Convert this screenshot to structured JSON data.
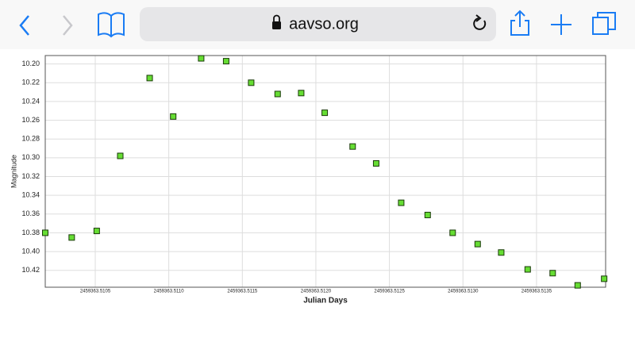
{
  "browser": {
    "url": "aavso.org"
  },
  "chart_data": {
    "type": "scatter",
    "x_label": "Julian Days",
    "y_label": "Magnitude",
    "x": [
      2459363.51016,
      2459363.51034,
      2459363.51051,
      2459363.51067,
      2459363.51087,
      2459363.51103,
      2459363.51122,
      2459363.51139,
      2459363.51156,
      2459363.51174,
      2459363.5119,
      2459363.51206,
      2459363.51225,
      2459363.51241,
      2459363.51258,
      2459363.51276,
      2459363.51293,
      2459363.5131,
      2459363.51326,
      2459363.51344,
      2459363.51361,
      2459363.51378,
      2459363.51396
    ],
    "values": [
      10.38,
      10.385,
      10.378,
      10.298,
      10.215,
      10.256,
      10.194,
      10.197,
      10.22,
      10.232,
      10.231,
      10.252,
      10.288,
      10.306,
      10.348,
      10.361,
      10.38,
      10.392,
      10.401,
      10.419,
      10.423,
      10.436,
      10.429
    ],
    "color": "#66dd33",
    "xlim": [
      2459363.51016,
      2459363.51397
    ],
    "ylim": [
      10.191,
      10.438
    ],
    "y_inverted": true,
    "grid": true,
    "xticks": [
      2459363.5105,
      {
        "value": 2459363.511,
        "label": "2459363.5110"
      },
      2459363.5115,
      {
        "value": 2459363.512,
        "label": "2459363.5120"
      },
      2459363.5125,
      {
        "value": 2459363.513,
        "label": "2459363.5130"
      },
      2459363.5135
    ],
    "yticks": [
      {
        "value": 10.2,
        "label": "10.20"
      },
      10.22,
      10.24,
      10.26,
      10.28,
      {
        "value": 10.3,
        "label": "10.30"
      },
      10.32,
      10.34,
      10.36,
      10.38,
      {
        "value": 10.4,
        "label": "10.40"
      },
      10.42
    ]
  }
}
